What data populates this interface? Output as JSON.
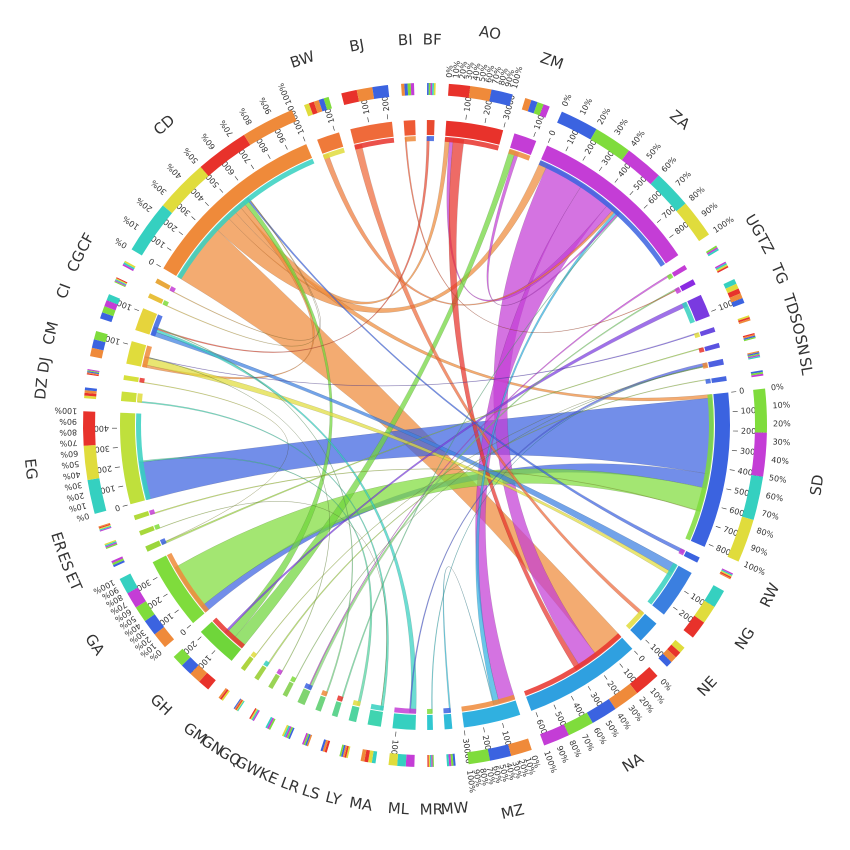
{
  "chart_data": {
    "type": "chord",
    "title": "",
    "percent_ticks": [
      "0%",
      "10%",
      "20%",
      "30%",
      "40%",
      "50%",
      "60%",
      "70%",
      "80%",
      "90%",
      "100%"
    ],
    "regions": [
      {
        "code": "AO",
        "value": 30000,
        "color": "#e8322b",
        "ticks": [
          "10000",
          "20000",
          "30000"
        ]
      },
      {
        "code": "ZM",
        "value": 12000,
        "color": "#c43dd6",
        "ticks": [
          "10000"
        ]
      },
      {
        "code": "ZA",
        "value": 90000,
        "color": "#c43dd6",
        "ticks": [
          "0",
          "10000",
          "20000",
          "30000",
          "40000",
          "50000",
          "60000",
          "70000",
          "80000"
        ]
      },
      {
        "code": "UG",
        "value": 2000,
        "color": "#c43dd6",
        "ticks": []
      },
      {
        "code": "TZ",
        "value": 3000,
        "color": "#8a2be2",
        "ticks": []
      },
      {
        "code": "TG",
        "value": 12000,
        "color": "#7a3ae0",
        "ticks": [
          "10000"
        ]
      },
      {
        "code": "TD",
        "value": 2000,
        "color": "#6a4ce0",
        "ticks": []
      },
      {
        "code": "SO",
        "value": 2000,
        "color": "#5a52e0",
        "ticks": []
      },
      {
        "code": "SN",
        "value": 3000,
        "color": "#4d5fe0",
        "ticks": []
      },
      {
        "code": "SL",
        "value": 2000,
        "color": "#4666e0",
        "ticks": []
      },
      {
        "code": "SD",
        "value": 82000,
        "color": "#3b63e0",
        "ticks": [
          "0",
          "10000",
          "20000",
          "30000",
          "40000",
          "50000",
          "60000",
          "70000",
          "80000"
        ]
      },
      {
        "code": "RW",
        "value": 3000,
        "color": "#3b63e0",
        "ticks": []
      },
      {
        "code": "NG",
        "value": 26000,
        "color": "#3b7fe0",
        "ticks": [
          "10000",
          "20000"
        ]
      },
      {
        "code": "NE",
        "value": 12000,
        "color": "#2f8fe0",
        "ticks": [
          "10000"
        ]
      },
      {
        "code": "NA",
        "value": 62000,
        "color": "#2fa0e0",
        "ticks": [
          "0",
          "10000",
          "20000",
          "30000",
          "40000",
          "50000",
          "60000"
        ]
      },
      {
        "code": "MZ",
        "value": 30000,
        "color": "#30b0e0",
        "ticks": [
          "10000",
          "20000",
          "30000"
        ]
      },
      {
        "code": "MW",
        "value": 4000,
        "color": "#30bcd8",
        "ticks": []
      },
      {
        "code": "MR",
        "value": 3000,
        "color": "#30c8d0",
        "ticks": []
      },
      {
        "code": "ML",
        "value": 12000,
        "color": "#35d0c0",
        "ticks": [
          "10000"
        ]
      },
      {
        "code": "MA",
        "value": 7000,
        "color": "#40d4b0",
        "ticks": []
      },
      {
        "code": "LY",
        "value": 4000,
        "color": "#50d4a0",
        "ticks": []
      },
      {
        "code": "LS",
        "value": 3000,
        "color": "#60d490",
        "ticks": []
      },
      {
        "code": "LR",
        "value": 3000,
        "color": "#70d480",
        "ticks": []
      },
      {
        "code": "KE",
        "value": 4000,
        "color": "#80d470",
        "ticks": []
      },
      {
        "code": "GW",
        "value": 2000,
        "color": "#90d460",
        "ticks": []
      },
      {
        "code": "GQ",
        "value": 2000,
        "color": "#9ad455",
        "ticks": []
      },
      {
        "code": "GN",
        "value": 2000,
        "color": "#a4d44a",
        "ticks": []
      },
      {
        "code": "GM",
        "value": 2000,
        "color": "#aed440",
        "ticks": []
      },
      {
        "code": "GH",
        "value": 22000,
        "color": "#6fd63a",
        "ticks": [
          "10000",
          "20000"
        ]
      },
      {
        "code": "GA",
        "value": 38000,
        "color": "#7fdc3c",
        "ticks": [
          "0",
          "10000",
          "20000",
          "30000"
        ]
      },
      {
        "code": "ET",
        "value": 3000,
        "color": "#9bd63c",
        "ticks": []
      },
      {
        "code": "ES",
        "value": 2000,
        "color": "#a8d83c",
        "ticks": []
      },
      {
        "code": "ER",
        "value": 2000,
        "color": "#b2da3c",
        "ticks": []
      },
      {
        "code": "EG",
        "value": 48000,
        "color": "#bfe03c",
        "ticks": [
          "0",
          "10000",
          "20000",
          "30000",
          "40000"
        ]
      },
      {
        "code": "DZ",
        "value": 5000,
        "color": "#cce03c",
        "ticks": []
      },
      {
        "code": "DJ",
        "value": 2000,
        "color": "#d6e03c",
        "ticks": []
      },
      {
        "code": "CM",
        "value": 12000,
        "color": "#e0dc3c",
        "ticks": [
          "10000"
        ]
      },
      {
        "code": "CI",
        "value": 12000,
        "color": "#e6d43c",
        "ticks": [
          "10000"
        ]
      },
      {
        "code": "CG",
        "value": 2000,
        "color": "#e8c03c",
        "ticks": []
      },
      {
        "code": "CF",
        "value": 2000,
        "color": "#e8a83c",
        "ticks": []
      },
      {
        "code": "CD",
        "value": 100000,
        "color": "#ef8a3a",
        "ticks": [
          "0",
          "10000",
          "20000",
          "30000",
          "40000",
          "50000",
          "60000",
          "70000",
          "80000",
          "90000",
          "100000"
        ]
      },
      {
        "code": "BW",
        "value": 12000,
        "color": "#ef7a3a",
        "ticks": [
          "10000"
        ]
      },
      {
        "code": "BJ",
        "value": 22000,
        "color": "#ef6a3a",
        "ticks": [
          "10000",
          "20000"
        ]
      },
      {
        "code": "BI",
        "value": 6000,
        "color": "#ee5a35",
        "ticks": []
      },
      {
        "code": "BF",
        "value": 4000,
        "color": "#e84a30",
        "ticks": []
      }
    ],
    "flows": [
      {
        "from": "CD",
        "to": "NA",
        "value": 34000
      },
      {
        "from": "CD",
        "to": "ZA",
        "value": 9000
      },
      {
        "from": "CD",
        "to": "AO",
        "value": 5000
      },
      {
        "from": "CD",
        "to": "SD",
        "value": 4000
      },
      {
        "from": "CD",
        "to": "CM",
        "value": 3000
      },
      {
        "from": "SD",
        "to": "EG",
        "value": 42000
      },
      {
        "from": "SD",
        "to": "GA",
        "value": 8000
      },
      {
        "from": "ZA",
        "to": "NA",
        "value": 22000
      },
      {
        "from": "ZA",
        "to": "MZ",
        "value": 18000
      },
      {
        "from": "ZA",
        "to": "AO",
        "value": 4000
      },
      {
        "from": "GA",
        "to": "SD",
        "value": 26000
      },
      {
        "from": "GH",
        "to": "ZM",
        "value": 7000
      },
      {
        "from": "GH",
        "to": "CD",
        "value": 5000
      },
      {
        "from": "AO",
        "to": "NA",
        "value": 6000
      },
      {
        "from": "NG",
        "to": "CI",
        "value": 5000
      },
      {
        "from": "CM",
        "to": "NG",
        "value": 4000
      },
      {
        "from": "BJ",
        "to": "NE",
        "value": 4000
      },
      {
        "from": "BW",
        "to": "ZA",
        "value": 3000
      },
      {
        "from": "ML",
        "to": "CI",
        "value": 3000
      },
      {
        "from": "MZ",
        "to": "ZA",
        "value": 3000
      },
      {
        "from": "TG",
        "to": "GH",
        "value": 2500
      },
      {
        "from": "RW",
        "to": "CD",
        "value": 2000
      },
      {
        "from": "KE",
        "to": "TZ",
        "value": 1500
      },
      {
        "from": "MA",
        "to": "DZ",
        "value": 1500
      },
      {
        "from": "LY",
        "to": "EG",
        "value": 1500
      },
      {
        "from": "SN",
        "to": "ML",
        "value": 1500
      },
      {
        "from": "BF",
        "to": "CI",
        "value": 1500
      },
      {
        "from": "ZM",
        "to": "ZA",
        "value": 2000
      },
      {
        "from": "UG",
        "to": "KE",
        "value": 1000
      },
      {
        "from": "ET",
        "to": "SO",
        "value": 1000
      },
      {
        "from": "GN",
        "to": "SL",
        "value": 800
      },
      {
        "from": "LR",
        "to": "CI",
        "value": 800
      },
      {
        "from": "MW",
        "to": "MZ",
        "value": 800
      },
      {
        "from": "LS",
        "to": "ZA",
        "value": 800
      },
      {
        "from": "BI",
        "to": "TZ",
        "value": 800
      },
      {
        "from": "ER",
        "to": "SD",
        "value": 600
      },
      {
        "from": "TD",
        "to": "CM",
        "value": 600
      },
      {
        "from": "MR",
        "to": "SN",
        "value": 500
      },
      {
        "from": "GM",
        "to": "SN",
        "value": 400
      },
      {
        "from": "GW",
        "to": "SN",
        "value": 400
      },
      {
        "from": "DJ",
        "to": "ET",
        "value": 400
      },
      {
        "from": "GQ",
        "to": "CM",
        "value": 400
      },
      {
        "from": "ES",
        "to": "MA",
        "value": 300
      },
      {
        "from": "CG",
        "to": "CD",
        "value": 400
      },
      {
        "from": "CF",
        "to": "CD",
        "value": 400
      }
    ]
  }
}
